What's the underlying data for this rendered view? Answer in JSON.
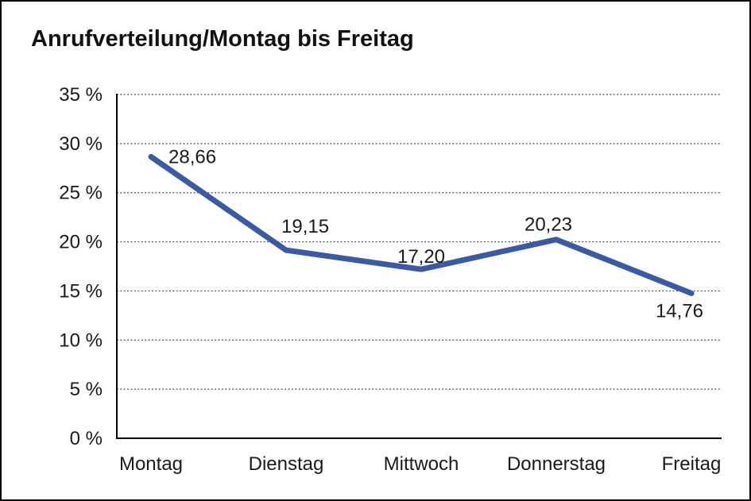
{
  "title": "Anrufverteilung/Montag bis Freitag",
  "chart_data": {
    "type": "line",
    "title": "Anrufverteilung/Montag bis Freitag",
    "categories": [
      "Montag",
      "Dienstag",
      "Mittwoch",
      "Donnerstag",
      "Freitag"
    ],
    "series": [
      {
        "name": "Anrufverteilung",
        "values": [
          28.66,
          19.15,
          17.2,
          20.23,
          14.76
        ],
        "data_labels": [
          "28,66",
          "19,15",
          "17,20",
          "20,23",
          "14,76"
        ]
      }
    ],
    "xlabel": "",
    "ylabel": "",
    "ylim": [
      0,
      35
    ],
    "y_ticks": [
      0,
      5,
      10,
      15,
      20,
      25,
      30,
      35
    ],
    "y_tick_labels": [
      "0 %",
      "5 %",
      "10 %",
      "15 %",
      "20 %",
      "25 %",
      "30 %",
      "35 %"
    ],
    "grid": "horizontal-dotted",
    "legend": "none",
    "colors": {
      "line": "#3A5AA5",
      "axis": "#000000",
      "gridline": "#3c3c3c",
      "text": "#1a1a1a"
    }
  }
}
